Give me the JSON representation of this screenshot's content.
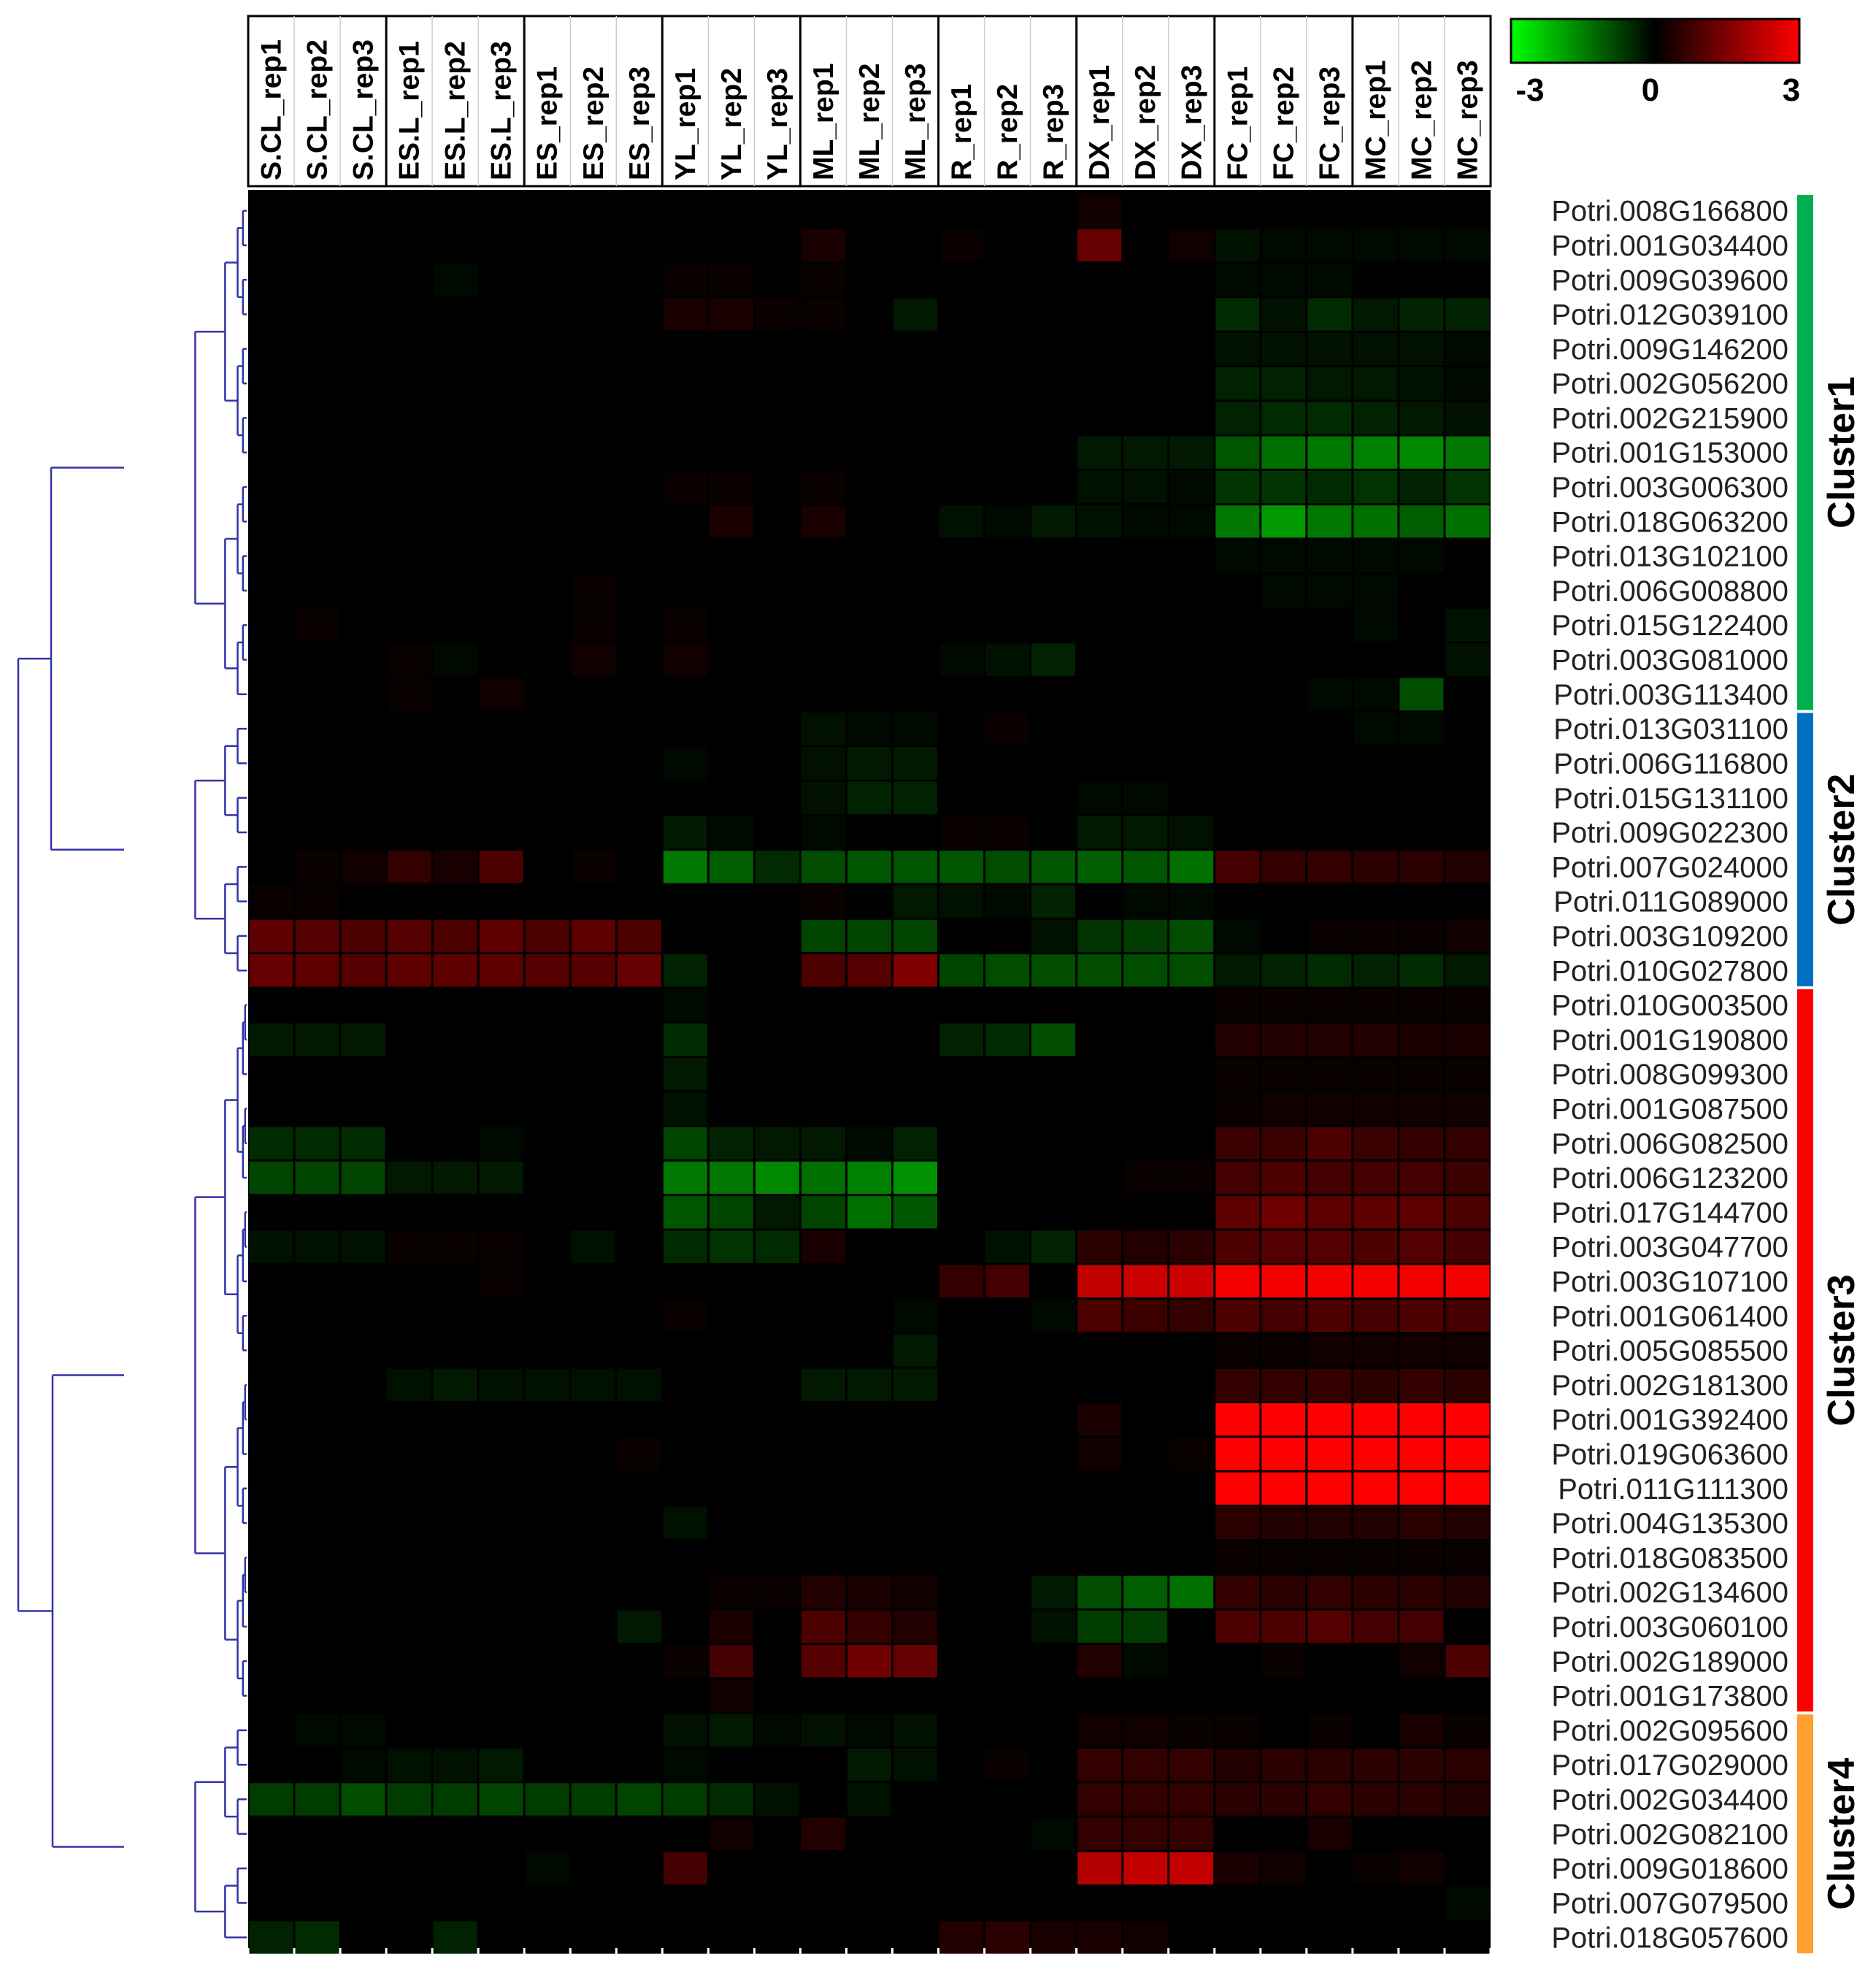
{
  "chart_data": {
    "type": "heatmap",
    "columns": [
      "S.CL_rep1",
      "S.CL_rep2",
      "S.CL_rep3",
      "ES.L_rep1",
      "ES.L_rep2",
      "ES.L_rep3",
      "ES_rep1",
      "ES_rep2",
      "ES_rep3",
      "YL_rep1",
      "YL_rep2",
      "YL_rep3",
      "ML_rep1",
      "ML_rep2",
      "ML_rep3",
      "R_rep1",
      "R_rep2",
      "R_rep3",
      "DX_rep1",
      "DX_rep2",
      "DX_rep3",
      "FC_rep1",
      "FC_rep2",
      "FC_rep3",
      "MC_rep1",
      "MC_rep2",
      "MC_rep3"
    ],
    "rows": [
      "Potri.008G166800",
      "Potri.001G034400",
      "Potri.009G039600",
      "Potri.012G039100",
      "Potri.009G146200",
      "Potri.002G056200",
      "Potri.002G215900",
      "Potri.001G153000",
      "Potri.003G006300",
      "Potri.018G063200",
      "Potri.013G102100",
      "Potri.006G008800",
      "Potri.015G122400",
      "Potri.003G081000",
      "Potri.003G113400",
      "Potri.013G031100",
      "Potri.006G116800",
      "Potri.015G131100",
      "Potri.009G022300",
      "Potri.007G024000",
      "Potri.011G089000",
      "Potri.003G109200",
      "Potri.010G027800",
      "Potri.010G003500",
      "Potri.001G190800",
      "Potri.008G099300",
      "Potri.001G087500",
      "Potri.006G082500",
      "Potri.006G123200",
      "Potri.017G144700",
      "Potri.003G047700",
      "Potri.003G107100",
      "Potri.001G061400",
      "Potri.005G085500",
      "Potri.002G181300",
      "Potri.001G392400",
      "Potri.019G063600",
      "Potri.011G111300",
      "Potri.004G135300",
      "Potri.018G083500",
      "Potri.002G134600",
      "Potri.003G060100",
      "Potri.002G189000",
      "Potri.001G173800",
      "Potri.002G095600",
      "Potri.017G029000",
      "Potri.002G034400",
      "Potri.002G082100",
      "Potri.009G018600",
      "Potri.007G079500",
      "Potri.018G057600"
    ],
    "values": [
      [
        0,
        0,
        0,
        0,
        0,
        0,
        0,
        0,
        0,
        0,
        0,
        0,
        0,
        0,
        0,
        0,
        0,
        0,
        0.2,
        0,
        0,
        0,
        0,
        0,
        0,
        0,
        0
      ],
      [
        0,
        0,
        0,
        0,
        0,
        0,
        0,
        0,
        0,
        0,
        0,
        0,
        0.3,
        0,
        0,
        0.1,
        0,
        0,
        1.2,
        0,
        0.2,
        -0.2,
        -0.1,
        -0.1,
        -0.1,
        -0.1,
        -0.1
      ],
      [
        0,
        0,
        0,
        0,
        -0.1,
        0,
        0,
        0,
        0,
        0.1,
        0.1,
        0,
        0.1,
        0,
        0,
        0,
        0,
        0,
        0,
        0,
        0,
        -0.1,
        -0.1,
        -0.1,
        0,
        0,
        0
      ],
      [
        0,
        0,
        0,
        0,
        0,
        0,
        0,
        0,
        0,
        0.3,
        0.3,
        0.1,
        0.1,
        0,
        -0.3,
        0,
        0,
        0,
        0,
        0,
        0,
        -0.5,
        -0.2,
        -0.5,
        -0.3,
        -0.4,
        -0.4
      ],
      [
        0,
        0,
        0,
        0,
        0,
        0,
        0,
        0,
        0,
        0,
        0,
        0,
        0,
        0,
        0,
        0,
        0,
        0,
        0,
        0,
        0,
        -0.2,
        -0.2,
        -0.2,
        -0.2,
        -0.2,
        -0.1
      ],
      [
        0,
        0,
        0,
        0,
        0,
        0,
        0,
        0,
        0,
        0,
        0,
        0,
        0,
        0,
        0,
        0,
        0,
        0,
        0,
        0,
        0,
        -0.4,
        -0.4,
        -0.3,
        -0.3,
        -0.2,
        -0.1
      ],
      [
        0,
        0,
        0,
        0,
        0,
        0,
        0,
        0,
        0,
        0,
        0,
        0,
        0,
        0,
        0,
        0,
        0,
        0,
        0,
        0,
        0,
        -0.4,
        -0.5,
        -0.5,
        -0.4,
        -0.3,
        -0.2
      ],
      [
        0,
        0,
        0,
        0,
        0,
        0,
        0,
        0,
        0,
        0,
        0,
        0,
        0,
        0,
        0,
        0,
        0,
        0,
        -0.3,
        -0.3,
        -0.3,
        -1,
        -1.3,
        -1.4,
        -1.5,
        -1.6,
        -1.4
      ],
      [
        0,
        0,
        0,
        0,
        0,
        0,
        0,
        0,
        0,
        0.1,
        0.1,
        0,
        0.1,
        0,
        0,
        0,
        0,
        0,
        -0.2,
        -0.2,
        -0.1,
        -0.6,
        -0.6,
        -0.5,
        -0.6,
        -0.4,
        -0.6
      ],
      [
        0,
        0,
        0,
        0,
        0,
        0,
        0,
        0,
        0,
        0,
        0.3,
        0,
        0.3,
        0,
        0,
        -0.2,
        -0.1,
        -0.3,
        -0.2,
        -0.1,
        -0.1,
        -1.4,
        -1.8,
        -1.4,
        -1.3,
        -1.1,
        -1.3
      ],
      [
        0,
        0,
        0,
        0,
        0,
        0,
        0,
        0,
        0,
        0,
        0,
        0,
        0,
        0,
        0,
        0,
        0,
        0,
        0,
        0,
        0,
        -0.1,
        -0.1,
        -0.1,
        -0.1,
        -0.1,
        0
      ],
      [
        0,
        0,
        0,
        0,
        0,
        0,
        0,
        0.1,
        0,
        0,
        0,
        0,
        0,
        0,
        0,
        0,
        0,
        0,
        0,
        0,
        0,
        0,
        -0.1,
        -0.1,
        -0.1,
        0,
        0
      ],
      [
        0,
        0.1,
        0,
        0,
        0,
        0,
        0,
        0.1,
        0,
        0.1,
        0,
        0,
        0,
        0,
        0,
        0,
        0,
        0,
        0,
        0,
        0,
        0,
        0,
        0,
        -0.1,
        0,
        -0.2
      ],
      [
        0,
        0,
        0,
        0.1,
        -0.1,
        0,
        0,
        0.2,
        0,
        0.2,
        0,
        0,
        0,
        0,
        0,
        -0.1,
        -0.2,
        -0.4,
        0,
        0,
        0,
        0,
        0,
        0,
        0,
        0,
        -0.2
      ],
      [
        0,
        0,
        0,
        0.1,
        0,
        0.2,
        0,
        0,
        0,
        0,
        0,
        0,
        0,
        0,
        0,
        0,
        0,
        0,
        0,
        0,
        0,
        0,
        0,
        -0.1,
        -0.1,
        -0.9,
        0
      ],
      [
        0,
        0,
        0,
        0,
        0,
        0,
        0,
        0,
        0,
        0,
        0,
        0,
        -0.2,
        -0.1,
        -0.1,
        0,
        0.1,
        0,
        0,
        0,
        0,
        0,
        0,
        0,
        -0.1,
        -0.1,
        0
      ],
      [
        0,
        0,
        0,
        0,
        0,
        0,
        0,
        0,
        0,
        -0.1,
        0,
        0,
        -0.2,
        -0.3,
        -0.3,
        0,
        0,
        0,
        0,
        0,
        0,
        0,
        0,
        0,
        0,
        0,
        0
      ],
      [
        0,
        0,
        0,
        0,
        0,
        0,
        0,
        0,
        0,
        0,
        0,
        0,
        -0.2,
        -0.4,
        -0.4,
        0,
        0,
        0,
        -0.1,
        -0.1,
        0,
        0,
        0,
        0,
        0,
        0,
        0
      ],
      [
        0,
        0,
        0,
        0,
        0,
        0,
        0,
        0,
        0,
        -0.3,
        -0.1,
        0,
        -0.1,
        0,
        0,
        0.1,
        0.1,
        0,
        -0.3,
        -0.3,
        -0.2,
        0,
        0,
        0,
        0,
        0,
        0
      ],
      [
        0,
        0.1,
        0.2,
        0.6,
        0.3,
        0.9,
        0,
        0.1,
        0,
        -1.4,
        -1.1,
        -0.5,
        -0.9,
        -1,
        -1,
        -1,
        -0.9,
        -1,
        -1.1,
        -1,
        -1.3,
        0.8,
        0.6,
        0.6,
        0.5,
        0.5,
        0.4
      ],
      [
        0.1,
        0.1,
        0,
        0,
        0,
        0,
        0,
        0,
        0,
        0,
        0,
        0,
        0.1,
        0,
        -0.3,
        -0.2,
        -0.1,
        -0.4,
        0,
        -0.1,
        -0.1,
        0,
        0,
        0,
        0,
        0,
        0
      ],
      [
        1.1,
        1,
        0.9,
        1,
        0.9,
        1.1,
        0.9,
        1.1,
        0.9,
        0,
        0,
        0,
        -0.8,
        -0.8,
        -0.8,
        0,
        0,
        -0.2,
        -0.6,
        -0.7,
        -0.9,
        -0.1,
        0,
        0.1,
        0.1,
        0.1,
        0.2
      ],
      [
        1.2,
        1.1,
        1,
        1.1,
        1.1,
        1.1,
        1,
        1,
        1.2,
        -0.4,
        0,
        0,
        0.9,
        1,
        1.5,
        -0.8,
        -0.9,
        -0.9,
        -0.9,
        -0.9,
        -0.9,
        -0.3,
        -0.4,
        -0.5,
        -0.4,
        -0.5,
        -0.3
      ],
      [
        0,
        0,
        0,
        0,
        0,
        0,
        0,
        0,
        0,
        -0.1,
        0,
        0,
        0,
        0,
        0,
        0,
        0,
        0,
        0,
        0,
        0,
        0.1,
        0.1,
        0.1,
        0.1,
        0.1,
        0.1
      ],
      [
        -0.3,
        -0.3,
        -0.3,
        0,
        0,
        0,
        0,
        0,
        0,
        -0.5,
        0,
        0,
        0,
        0,
        0,
        -0.4,
        -0.5,
        -0.9,
        0,
        0,
        0,
        0.4,
        0.4,
        0.4,
        0.4,
        0.3,
        0.3
      ],
      [
        0,
        0,
        0,
        0,
        0,
        0,
        0,
        0,
        0,
        -0.3,
        0,
        0,
        0,
        0,
        0,
        0,
        0,
        0,
        0,
        0,
        0,
        0.1,
        0.1,
        0.1,
        0.1,
        0.1,
        0.1
      ],
      [
        0,
        0,
        0,
        0,
        0,
        0,
        0,
        0,
        0,
        -0.2,
        0,
        0,
        0,
        0,
        0,
        0,
        0,
        0,
        0,
        0,
        0,
        0.1,
        0.2,
        0.2,
        0.2,
        0.2,
        0.2
      ],
      [
        -0.5,
        -0.5,
        -0.5,
        0,
        0,
        -0.1,
        0,
        0,
        0,
        -0.8,
        -0.4,
        -0.3,
        -0.3,
        -0.1,
        -0.4,
        0,
        0,
        0,
        0,
        0,
        0,
        0.7,
        0.7,
        0.9,
        0.7,
        0.6,
        0.6
      ],
      [
        -0.8,
        -0.8,
        -0.8,
        -0.3,
        -0.3,
        -0.3,
        0,
        0,
        0,
        -1.4,
        -1.4,
        -1.6,
        -1.3,
        -1.5,
        -1.7,
        0,
        0,
        0,
        0,
        0.1,
        0.1,
        0.8,
        0.9,
        0.8,
        0.8,
        0.8,
        0.7
      ],
      [
        0,
        0,
        0,
        0,
        0,
        0,
        0,
        0,
        0,
        -1,
        -0.8,
        -0.3,
        -0.8,
        -1.3,
        -1,
        0,
        0,
        0,
        0,
        0,
        0,
        1.1,
        1.3,
        1.1,
        1.1,
        1.1,
        0.9
      ],
      [
        -0.2,
        -0.2,
        -0.2,
        0.1,
        0.1,
        0.1,
        0,
        -0.2,
        0,
        -0.5,
        -0.6,
        -0.5,
        0.3,
        0,
        0,
        0,
        -0.2,
        -0.4,
        0.5,
        0.4,
        0.5,
        0.9,
        1,
        1,
        0.9,
        1,
        0.8
      ],
      [
        0,
        0,
        0,
        0,
        0,
        0.1,
        0,
        0,
        0,
        0,
        0,
        0,
        0,
        0,
        0,
        0.6,
        0.8,
        0,
        2.3,
        2.4,
        2.4,
        2.9,
        2.9,
        2.9,
        2.9,
        2.9,
        2.9
      ],
      [
        0,
        0,
        0,
        0,
        0,
        0,
        0,
        0,
        0,
        0.1,
        0,
        0,
        0,
        0,
        -0.1,
        0,
        0,
        -0.1,
        0.9,
        0.7,
        0.6,
        0.9,
        0.8,
        0.9,
        0.8,
        0.9,
        0.8
      ],
      [
        0,
        0,
        0,
        0,
        0,
        0,
        0,
        0,
        0,
        0,
        0,
        0,
        0,
        0,
        -0.3,
        0,
        0,
        0,
        0,
        0,
        0,
        0.1,
        0.1,
        0.2,
        0.2,
        0.2,
        0.2
      ],
      [
        0,
        0,
        0,
        -0.2,
        -0.3,
        -0.2,
        -0.2,
        -0.2,
        -0.2,
        0,
        0,
        0,
        -0.3,
        -0.3,
        -0.3,
        0,
        0,
        0,
        0,
        0,
        0,
        0.6,
        0.6,
        0.6,
        0.5,
        0.6,
        0.5
      ],
      [
        0,
        0,
        0,
        0,
        0,
        0,
        0,
        0,
        0,
        0,
        0,
        0,
        0,
        0,
        0,
        0,
        0,
        0,
        0.3,
        0,
        0,
        3,
        3,
        3,
        3,
        3,
        3
      ],
      [
        0,
        0,
        0,
        0,
        0,
        0,
        0,
        0,
        0.1,
        0,
        0,
        0,
        0,
        0,
        0,
        0,
        0,
        0,
        0.2,
        0,
        0.1,
        3,
        3,
        3,
        3,
        3,
        3
      ],
      [
        0,
        0,
        0,
        0,
        0,
        0,
        0,
        0,
        0,
        0,
        0,
        0,
        0,
        0,
        0,
        0,
        0,
        0,
        0,
        0,
        0,
        3,
        3,
        3,
        3,
        3,
        3
      ],
      [
        0,
        0,
        0,
        0,
        0,
        0,
        0,
        0,
        0,
        -0.2,
        0,
        0,
        0,
        0,
        0,
        0,
        0,
        0,
        0,
        0,
        0,
        0.5,
        0.4,
        0.4,
        0.4,
        0.5,
        0.4
      ],
      [
        0,
        0,
        0,
        0,
        0,
        0,
        0,
        0,
        0,
        0,
        0,
        0,
        0,
        0,
        0,
        0,
        0,
        0,
        0,
        0,
        0,
        0.1,
        0.1,
        0.1,
        0.1,
        0.1,
        0.1
      ],
      [
        0,
        0,
        0,
        0,
        0,
        0,
        0,
        0,
        0,
        0,
        0.1,
        0.1,
        0.4,
        0.3,
        0.2,
        0,
        0,
        -0.3,
        -0.9,
        -1.1,
        -1.3,
        0.6,
        0.5,
        0.6,
        0.5,
        0.5,
        0.4
      ],
      [
        0,
        0,
        0,
        0,
        0,
        0,
        0,
        0,
        -0.3,
        0,
        0.3,
        0,
        0.9,
        0.6,
        0.4,
        0,
        0,
        -0.2,
        -0.7,
        -0.7,
        0,
        0.9,
        0.9,
        1,
        0.8,
        0.8,
        0
      ],
      [
        0,
        0,
        0,
        0,
        0,
        0,
        0,
        0,
        0,
        0.1,
        0.8,
        0,
        1,
        1.3,
        1.2,
        0,
        0,
        0,
        0.4,
        -0.1,
        0,
        0,
        0.1,
        0,
        0,
        0.2,
        0.9
      ],
      [
        0,
        0,
        0,
        0,
        0,
        0,
        0,
        0,
        0,
        0,
        0.2,
        0,
        0,
        0,
        0,
        0,
        0,
        0,
        0,
        0,
        0,
        0,
        0,
        0,
        0,
        0,
        0
      ],
      [
        0,
        -0.1,
        -0.1,
        0,
        0,
        0,
        0,
        0,
        0,
        -0.2,
        -0.3,
        -0.1,
        -0.2,
        -0.1,
        -0.2,
        0,
        0,
        0,
        0.2,
        0.2,
        0.1,
        0.1,
        0,
        0.1,
        0,
        0.3,
        0.1
      ],
      [
        0,
        0,
        -0.1,
        -0.2,
        -0.2,
        -0.3,
        0,
        0,
        0,
        -0.1,
        0,
        0,
        0,
        -0.3,
        -0.2,
        0,
        0.1,
        0,
        0.6,
        0.6,
        0.6,
        0.4,
        0.5,
        0.5,
        0.5,
        0.5,
        0.5
      ],
      [
        -0.7,
        -0.7,
        -0.9,
        -0.7,
        -0.7,
        -0.8,
        -0.7,
        -0.7,
        -0.8,
        -0.7,
        -0.5,
        -0.2,
        0,
        -0.2,
        0,
        0,
        0,
        0,
        0.6,
        0.6,
        0.6,
        0.5,
        0.5,
        0.6,
        0.5,
        0.5,
        0.4
      ],
      [
        0,
        0,
        0,
        0,
        0,
        0,
        0,
        0,
        0,
        0,
        0.2,
        0,
        0.4,
        0,
        0,
        0,
        0,
        -0.1,
        0.6,
        0.6,
        0.6,
        0,
        0,
        0.3,
        0,
        0,
        0
      ],
      [
        0,
        0,
        0,
        0,
        0,
        0,
        -0.1,
        0,
        0,
        0.8,
        0,
        0,
        0,
        0,
        0,
        0,
        0,
        0,
        2.1,
        2.3,
        2.3,
        0.3,
        0.2,
        0,
        0.1,
        0.2,
        0
      ],
      [
        0,
        0,
        0,
        0,
        0,
        0,
        0,
        0,
        0,
        0,
        0,
        0,
        0,
        0,
        0,
        0,
        0,
        0,
        0,
        0,
        0,
        0,
        0,
        0,
        0,
        0,
        -0.1
      ],
      [
        -0.4,
        -0.5,
        0,
        0,
        -0.4,
        0,
        0,
        0,
        0,
        0,
        0,
        0,
        0,
        0,
        0,
        0.4,
        0.5,
        0.3,
        0.3,
        0.2,
        0,
        0,
        0,
        0,
        0,
        0,
        0
      ]
    ],
    "scale": {
      "min": -3,
      "mid": 0,
      "max": 3,
      "labels": [
        "-3",
        "0",
        "3"
      ],
      "colors": [
        "#00ff00",
        "#000000",
        "#ff0000"
      ]
    },
    "clusters": [
      {
        "label": "Cluster1",
        "start": 0,
        "end": 14,
        "color": "#00b050"
      },
      {
        "label": "Cluster2",
        "start": 15,
        "end": 22,
        "color": "#0070c0"
      },
      {
        "label": "Cluster3",
        "start": 23,
        "end": 43,
        "color": "#ff0000"
      },
      {
        "label": "Cluster4",
        "start": 44,
        "end": 50,
        "color": "#ffa030"
      }
    ],
    "tree_color": "#3333aa",
    "dendrogram": "row clustering tree (left)"
  }
}
